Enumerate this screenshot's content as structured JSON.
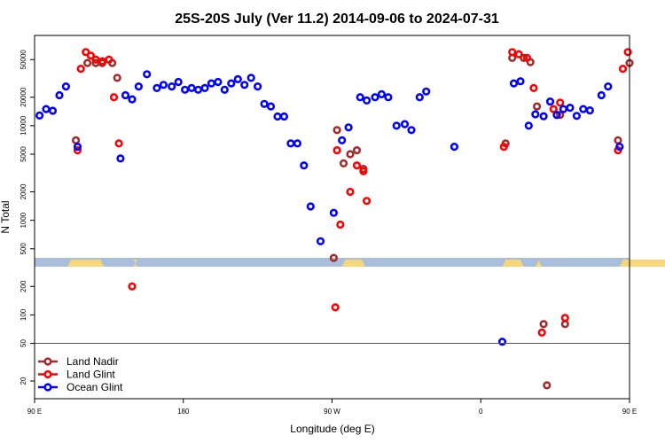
{
  "chart_data": {
    "type": "scatter",
    "title": "25S-20S July (Ver 11.2)   2014-09-06 to 2024-07-31",
    "xlabel": "Longitude (deg E)",
    "ylabel": "N Total",
    "x_scale": "longitude",
    "xlim": [
      90,
      450
    ],
    "y_scale": "log",
    "ylim": [
      13,
      90000
    ],
    "x_ticks": [
      {
        "value": 90,
        "label": "90 E"
      },
      {
        "value": 180,
        "label": "180"
      },
      {
        "value": 270,
        "label": "90 W"
      },
      {
        "value": 360,
        "label": "0"
      },
      {
        "value": 450,
        "label": "90 E"
      },
      {
        "value": 540,
        "label": "180"
      }
    ],
    "y_ticks": [
      20,
      50,
      100,
      200,
      500,
      1000,
      2000,
      5000,
      10000,
      20000,
      50000
    ],
    "y_tick_labels": [
      "20",
      "50",
      "100",
      "200",
      "500",
      "1000",
      "2000",
      "5000",
      "10000",
      "20000",
      "50000"
    ],
    "reference_line_y": 50,
    "series": [
      {
        "name": "Land Nadir",
        "color": "#A52A2A",
        "points": [
          [
            115,
            7000
          ],
          [
            122,
            46000
          ],
          [
            127,
            46000
          ],
          [
            131,
            46000
          ],
          [
            137,
            46000
          ],
          [
            140,
            32000
          ],
          [
            271,
            400
          ],
          [
            273,
            9000
          ],
          [
            277,
            4000
          ],
          [
            281,
            5000
          ],
          [
            285,
            5500
          ],
          [
            289,
            3500
          ],
          [
            375,
            6500
          ],
          [
            379,
            52000
          ],
          [
            386,
            52000
          ],
          [
            390,
            47000
          ],
          [
            394,
            16000
          ],
          [
            398,
            80
          ],
          [
            400,
            18
          ],
          [
            406,
            13000
          ],
          [
            408,
            13000
          ],
          [
            411,
            80
          ],
          [
            443,
            7000
          ],
          [
            450,
            46000
          ],
          [
            455,
            46000
          ],
          [
            459,
            46000
          ],
          [
            465,
            46000
          ],
          [
            468,
            32000
          ]
        ]
      },
      {
        "name": "Land Glint",
        "color": "#FF0000",
        "points": [
          [
            116,
            5500
          ],
          [
            118,
            40000
          ],
          [
            121,
            60000
          ],
          [
            124,
            55000
          ],
          [
            127,
            50000
          ],
          [
            131,
            48000
          ],
          [
            135,
            50000
          ],
          [
            138,
            20000
          ],
          [
            141,
            6500
          ],
          [
            149,
            200
          ],
          [
            272,
            120
          ],
          [
            273,
            5500
          ],
          [
            275,
            900
          ],
          [
            281,
            2000
          ],
          [
            285,
            3800
          ],
          [
            289,
            3300
          ],
          [
            291,
            1600
          ],
          [
            374,
            6000
          ],
          [
            379,
            60000
          ],
          [
            383,
            57000
          ],
          [
            388,
            52000
          ],
          [
            392,
            25000
          ],
          [
            397,
            65
          ],
          [
            404,
            15000
          ],
          [
            408,
            17500
          ],
          [
            411,
            93
          ],
          [
            443,
            5500
          ],
          [
            446,
            40000
          ],
          [
            449,
            60000
          ],
          [
            452,
            55000
          ],
          [
            455,
            50000
          ],
          [
            459,
            48000
          ],
          [
            463,
            50000
          ],
          [
            466,
            20000
          ],
          [
            469,
            6500
          ],
          [
            477,
            200
          ]
        ]
      },
      {
        "name": "Ocean Glint",
        "color": "#0000FF",
        "points": [
          [
            93,
            12800
          ],
          [
            97,
            15000
          ],
          [
            101,
            14400
          ],
          [
            105,
            21000
          ],
          [
            109,
            26000
          ],
          [
            116,
            6000
          ],
          [
            142,
            4500
          ],
          [
            145,
            21000
          ],
          [
            149,
            19000
          ],
          [
            153,
            26000
          ],
          [
            158,
            35000
          ],
          [
            164,
            25000
          ],
          [
            168,
            27000
          ],
          [
            173,
            26000
          ],
          [
            177,
            29000
          ],
          [
            181,
            24000
          ],
          [
            185,
            25000
          ],
          [
            189,
            24000
          ],
          [
            193,
            25000
          ],
          [
            197,
            28000
          ],
          [
            201,
            29000
          ],
          [
            205,
            24000
          ],
          [
            209,
            28000
          ],
          [
            213,
            31000
          ],
          [
            217,
            27000
          ],
          [
            221,
            32000
          ],
          [
            225,
            26000
          ],
          [
            229,
            17000
          ],
          [
            233,
            16000
          ],
          [
            237,
            12500
          ],
          [
            241,
            12500
          ],
          [
            245,
            6500
          ],
          [
            249,
            6500
          ],
          [
            253,
            3800
          ],
          [
            257,
            1400
          ],
          [
            263,
            600
          ],
          [
            271,
            1200
          ],
          [
            276,
            7000
          ],
          [
            280,
            9600
          ],
          [
            287,
            20000
          ],
          [
            291,
            18500
          ],
          [
            296,
            20000
          ],
          [
            300,
            21500
          ],
          [
            304,
            20000
          ],
          [
            309,
            10000
          ],
          [
            314,
            10400
          ],
          [
            318,
            9000
          ],
          [
            323,
            20000
          ],
          [
            327,
            23000
          ],
          [
            344,
            6000
          ],
          [
            373,
            52
          ],
          [
            380,
            28000
          ],
          [
            384,
            29500
          ],
          [
            389,
            10000
          ],
          [
            393,
            13200
          ],
          [
            398,
            12600
          ],
          [
            402,
            18000
          ],
          [
            406,
            13000
          ],
          [
            410,
            15000
          ],
          [
            414,
            15500
          ],
          [
            418,
            12700
          ],
          [
            422,
            15000
          ],
          [
            426,
            14500
          ],
          [
            433,
            21000
          ],
          [
            437,
            26000
          ],
          [
            444,
            6000
          ],
          [
            470,
            4500
          ],
          [
            473,
            21000
          ],
          [
            477,
            19000
          ],
          [
            481,
            26000
          ],
          [
            486,
            35000
          ],
          [
            490,
            25000
          ],
          [
            494,
            27000
          ]
        ]
      }
    ],
    "legend": {
      "position": "bottom-left"
    },
    "grid": false
  }
}
